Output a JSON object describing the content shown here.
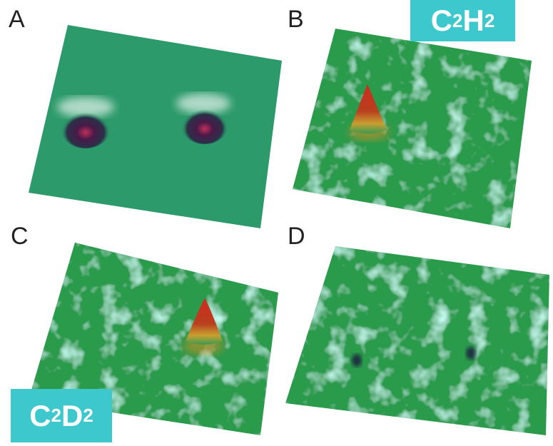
{
  "panels": [
    {
      "label": "A"
    },
    {
      "label": "B"
    },
    {
      "label": "C"
    },
    {
      "label": "D"
    }
  ],
  "badges": [
    {
      "parts": [
        "C",
        "2",
        "H",
        "2"
      ]
    },
    {
      "parts": [
        "C",
        "2",
        "D",
        "2"
      ]
    }
  ]
}
